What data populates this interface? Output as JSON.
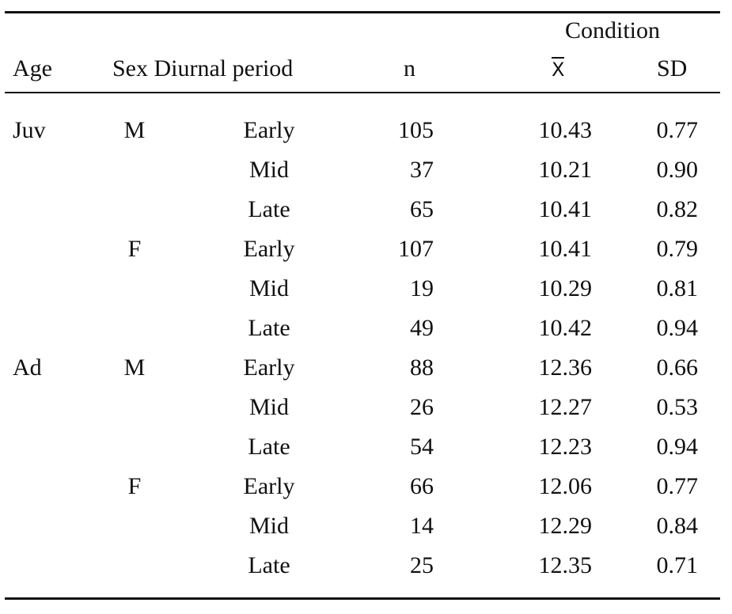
{
  "table": {
    "header": {
      "group_label": "Condition",
      "age": "Age",
      "sex_period": "Sex Diurnal period",
      "n": "n",
      "mean": "X",
      "sd": "SD"
    },
    "rows": [
      {
        "age": "Juv",
        "sex": "M",
        "period": "Early",
        "n": "105",
        "mean": "10.43",
        "sd": "0.77"
      },
      {
        "age": "",
        "sex": "",
        "period": "Mid",
        "n": "37",
        "mean": "10.21",
        "sd": "0.90"
      },
      {
        "age": "",
        "sex": "",
        "period": "Late",
        "n": "65",
        "mean": "10.41",
        "sd": "0.82"
      },
      {
        "age": "",
        "sex": "F",
        "period": "Early",
        "n": "107",
        "mean": "10.41",
        "sd": "0.79"
      },
      {
        "age": "",
        "sex": "",
        "period": "Mid",
        "n": "19",
        "mean": "10.29",
        "sd": "0.81"
      },
      {
        "age": "",
        "sex": "",
        "period": "Late",
        "n": "49",
        "mean": "10.42",
        "sd": "0.94"
      },
      {
        "age": "Ad",
        "sex": "M",
        "period": "Early",
        "n": "88",
        "mean": "12.36",
        "sd": "0.66"
      },
      {
        "age": "",
        "sex": "",
        "period": "Mid",
        "n": "26",
        "mean": "12.27",
        "sd": "0.53"
      },
      {
        "age": "",
        "sex": "",
        "period": "Late",
        "n": "54",
        "mean": "12.23",
        "sd": "0.94"
      },
      {
        "age": "",
        "sex": "F",
        "period": "Early",
        "n": "66",
        "mean": "12.06",
        "sd": "0.77"
      },
      {
        "age": "",
        "sex": "",
        "period": "Mid",
        "n": "14",
        "mean": "12.29",
        "sd": "0.84"
      },
      {
        "age": "",
        "sex": "",
        "period": "Late",
        "n": "25",
        "mean": "12.35",
        "sd": "0.71"
      }
    ]
  }
}
